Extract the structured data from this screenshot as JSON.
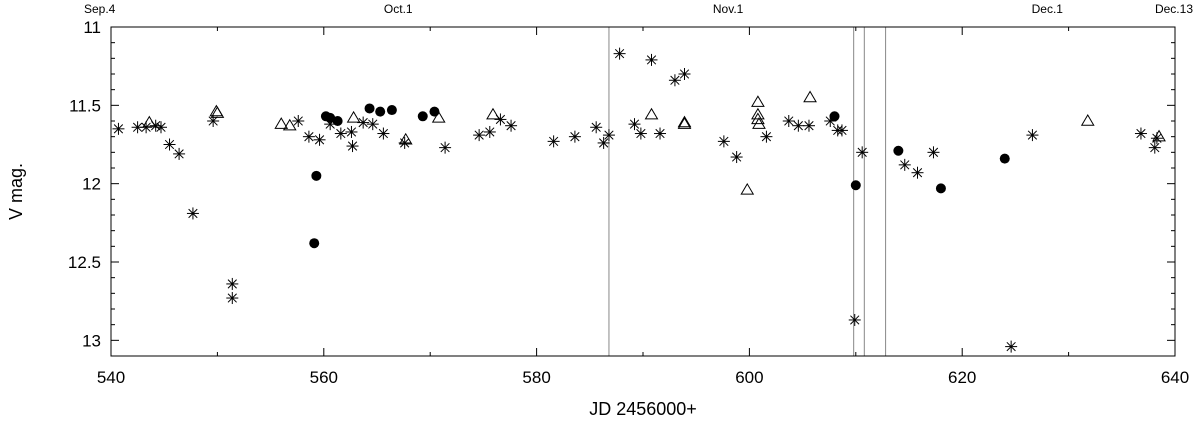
{
  "chart_data": {
    "type": "scatter",
    "title": "",
    "xlabel": "JD 2456000+",
    "ylabel": "V mag.",
    "xlim": [
      540,
      640
    ],
    "ylim": [
      11,
      13.1
    ],
    "y_inverted": true,
    "grid": false,
    "xticks": [
      540,
      560,
      580,
      600,
      620,
      640
    ],
    "yticks": [
      11,
      11.5,
      12,
      12.5,
      13
    ],
    "ytick_labels": [
      "11",
      "11.5",
      "12",
      "12.5",
      "13"
    ],
    "date_labels": [
      {
        "text": "Sep.4",
        "x": 540
      },
      {
        "text": "Oct.1",
        "x": 567
      },
      {
        "text": "Nov.1",
        "x": 598
      },
      {
        "text": "Dec.1",
        "x": 628
      },
      {
        "text": "Dec.13",
        "x": 640
      }
    ],
    "vertical_lines": [
      586.8,
      609.8,
      610.8,
      612.8
    ],
    "series": [
      {
        "marker": "asterisk",
        "color": "#000000",
        "points": [
          [
            540.7,
            11.65
          ],
          [
            542.5,
            11.64
          ],
          [
            543.3,
            11.64
          ],
          [
            544.2,
            11.63
          ],
          [
            544.7,
            11.64
          ],
          [
            545.5,
            11.75
          ],
          [
            546.4,
            11.81
          ],
          [
            547.7,
            12.19
          ],
          [
            549.6,
            11.6
          ],
          [
            551.4,
            12.64
          ],
          [
            551.4,
            12.73
          ],
          [
            557.6,
            11.6
          ],
          [
            558.6,
            11.7
          ],
          [
            559.6,
            11.72
          ],
          [
            560.6,
            11.62
          ],
          [
            561.6,
            11.68
          ],
          [
            562.6,
            11.67
          ],
          [
            562.7,
            11.76
          ],
          [
            563.7,
            11.61
          ],
          [
            564.6,
            11.62
          ],
          [
            565.6,
            11.68
          ],
          [
            567.6,
            11.74
          ],
          [
            571.4,
            11.77
          ],
          [
            574.6,
            11.69
          ],
          [
            575.6,
            11.67
          ],
          [
            576.6,
            11.59
          ],
          [
            577.6,
            11.63
          ],
          [
            581.6,
            11.73
          ],
          [
            583.6,
            11.7
          ],
          [
            585.6,
            11.64
          ],
          [
            586.3,
            11.74
          ],
          [
            586.8,
            11.69
          ],
          [
            587.8,
            11.17
          ],
          [
            589.2,
            11.62
          ],
          [
            589.8,
            11.68
          ],
          [
            590.8,
            11.21
          ],
          [
            591.6,
            11.68
          ],
          [
            593.0,
            11.34
          ],
          [
            593.9,
            11.3
          ],
          [
            597.6,
            11.73
          ],
          [
            598.8,
            11.83
          ],
          [
            601.6,
            11.7
          ],
          [
            603.7,
            11.6
          ],
          [
            604.6,
            11.63
          ],
          [
            605.6,
            11.63
          ],
          [
            607.6,
            11.6
          ],
          [
            608.3,
            11.66
          ],
          [
            608.7,
            11.66
          ],
          [
            609.9,
            12.87
          ],
          [
            610.6,
            11.8
          ],
          [
            614.6,
            11.88
          ],
          [
            615.8,
            11.93
          ],
          [
            617.3,
            11.8
          ],
          [
            624.6,
            13.04
          ],
          [
            626.6,
            11.69
          ],
          [
            636.8,
            11.68
          ],
          [
            638.1,
            11.77
          ],
          [
            638.3,
            11.71
          ]
        ]
      },
      {
        "marker": "open-triangle",
        "color": "#000000",
        "points": [
          [
            543.6,
            11.61
          ],
          [
            549.9,
            11.54
          ],
          [
            550.0,
            11.55
          ],
          [
            556.0,
            11.62
          ],
          [
            556.8,
            11.63
          ],
          [
            562.8,
            11.58
          ],
          [
            567.7,
            11.72
          ],
          [
            570.8,
            11.58
          ],
          [
            575.9,
            11.56
          ],
          [
            590.8,
            11.56
          ],
          [
            593.9,
            11.61
          ],
          [
            593.9,
            11.62
          ],
          [
            599.8,
            12.04
          ],
          [
            600.8,
            11.48
          ],
          [
            600.8,
            11.56
          ],
          [
            600.8,
            11.59
          ],
          [
            600.9,
            11.62
          ],
          [
            605.7,
            11.45
          ],
          [
            631.8,
            11.6
          ],
          [
            638.5,
            11.7
          ]
        ]
      },
      {
        "marker": "filled-circle",
        "color": "#000000",
        "points": [
          [
            559.1,
            12.38
          ],
          [
            559.3,
            11.95
          ],
          [
            560.2,
            11.57
          ],
          [
            560.6,
            11.58
          ],
          [
            561.3,
            11.6
          ],
          [
            564.3,
            11.52
          ],
          [
            565.3,
            11.54
          ],
          [
            566.4,
            11.53
          ],
          [
            569.3,
            11.57
          ],
          [
            570.4,
            11.54
          ],
          [
            608.0,
            11.57
          ],
          [
            610.0,
            12.01
          ],
          [
            614.0,
            11.79
          ],
          [
            618.0,
            12.03
          ],
          [
            624.0,
            11.84
          ]
        ]
      }
    ]
  }
}
